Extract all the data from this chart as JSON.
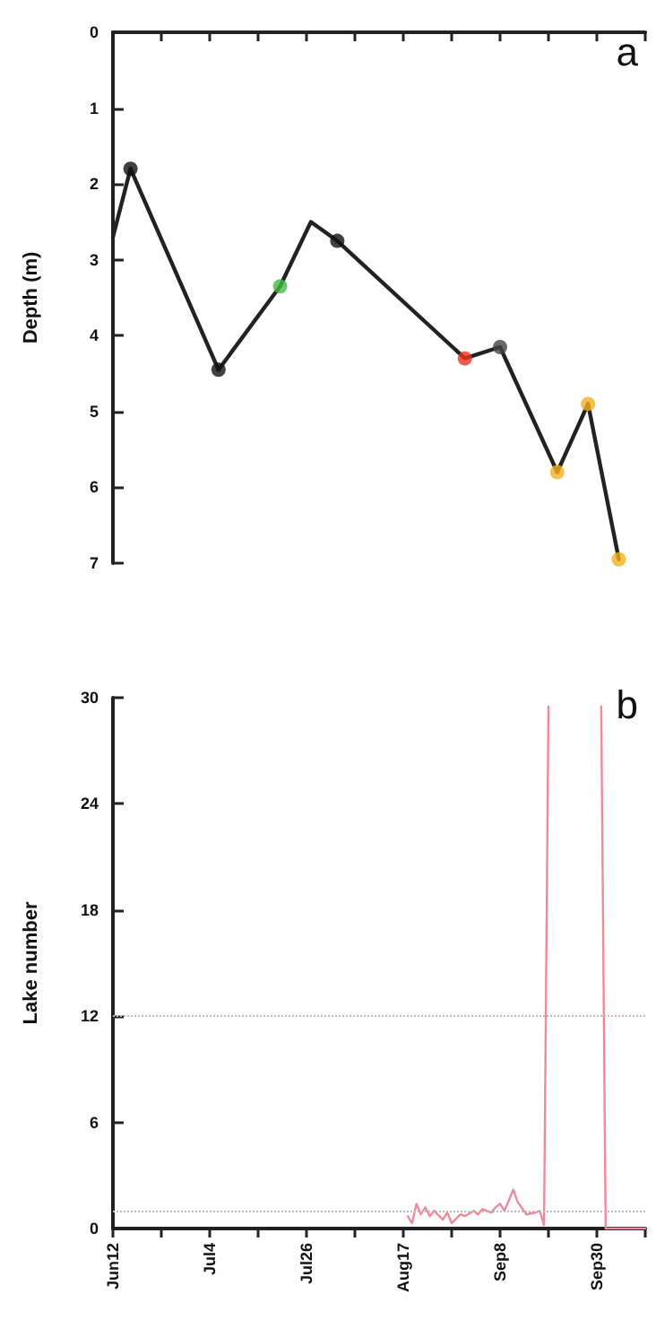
{
  "chart_data": [
    {
      "type": "line",
      "ylabel": "Depth (m)",
      "annotations": [
        "a"
      ],
      "ylim": [
        7,
        0
      ],
      "yticks": [
        0,
        1,
        2,
        3,
        4,
        5,
        6,
        7
      ],
      "xlim": [
        "--06-12",
        "--10-11"
      ],
      "xticks": [
        {
          "value": "--06-12",
          "label": "Jun12"
        },
        {
          "value": "--06-23",
          "label": null
        },
        {
          "value": "--07-04",
          "label": "Jul4"
        },
        {
          "value": "--07-15",
          "label": null
        },
        {
          "value": "--07-26",
          "label": "Jul26"
        },
        {
          "value": "--08-06",
          "label": null
        },
        {
          "value": "--08-17",
          "label": "Aug17"
        },
        {
          "value": "--08-28",
          "label": null
        },
        {
          "value": "--09-08",
          "label": "Sep8"
        },
        {
          "value": "--09-19",
          "label": null
        },
        {
          "value": "--09-30",
          "label": "Sep30"
        },
        {
          "value": "--10-11",
          "label": null
        }
      ],
      "tick_labels": "y",
      "grid": false,
      "series": [
        {
          "color": "#222222",
          "marker": "none",
          "line_style": "solid",
          "x": [
            "--06-12",
            "--06-16",
            "--07-06",
            "--07-20",
            "--07-27",
            "--08-02",
            "--08-31",
            "--09-08",
            "--09-21",
            "--09-28",
            "--10-05"
          ],
          "values": [
            2.7,
            1.8,
            4.45,
            3.35,
            2.5,
            2.75,
            4.3,
            4.15,
            5.8,
            4.9,
            6.95
          ]
        },
        {
          "type": "scatter",
          "marker": "circle",
          "x": [
            "--06-16",
            "--07-06",
            "--07-20",
            "--08-02",
            "--08-31",
            "--09-08",
            "--09-21",
            "--09-28",
            "--10-05"
          ],
          "values": [
            1.8,
            4.45,
            3.35,
            2.75,
            4.3,
            4.15,
            5.8,
            4.9,
            6.95
          ],
          "colors": [
            "#111111",
            "#111111",
            "#44bb44",
            "#111111",
            "#ee3322",
            "#444444",
            "#f5b021",
            "#f5b021",
            "#f5b021"
          ]
        }
      ]
    },
    {
      "type": "line",
      "ylabel": "Lake number",
      "annotations": [
        "b"
      ],
      "ylim": [
        0,
        30
      ],
      "yticks": [
        0,
        6,
        12,
        18,
        24,
        30
      ],
      "xlim": [
        "--06-12",
        "--10-11"
      ],
      "xticks": [
        {
          "value": "--06-12",
          "label": "Jun12"
        },
        {
          "value": "--06-23",
          "label": null
        },
        {
          "value": "--07-04",
          "label": "Jul4"
        },
        {
          "value": "--07-15",
          "label": null
        },
        {
          "value": "--07-26",
          "label": "Jul26"
        },
        {
          "value": "--08-06",
          "label": null
        },
        {
          "value": "--08-17",
          "label": "Aug17"
        },
        {
          "value": "--08-28",
          "label": null
        },
        {
          "value": "--09-08",
          "label": "Sep8"
        },
        {
          "value": "--09-19",
          "label": null
        },
        {
          "value": "--09-30",
          "label": "Sep30"
        },
        {
          "value": "--10-11",
          "label": null
        }
      ],
      "grid": false,
      "ref_lines": [
        {
          "axis": "y",
          "value": 12,
          "color": "#bbbbbb",
          "line_style": "dotted"
        },
        {
          "axis": "y",
          "value": 1,
          "color": "#bbbbbb",
          "line_style": "dotted"
        }
      ],
      "series": [
        {
          "color": "#f08a9a",
          "marker": "none",
          "line_style": "solid",
          "x": [
            "--08-18",
            "--08-19",
            "--08-20",
            "--08-21",
            "--08-22",
            "--08-23",
            "--08-24",
            "--08-26",
            "--08-27",
            "--08-28",
            "--08-30",
            "--08-31",
            "--09-02",
            "--09-03",
            "--09-04",
            "--09-06",
            "--09-07",
            "--09-08",
            "--09-09",
            "--09-11",
            "--09-12",
            "--09-14",
            "--09-16",
            "--09-17",
            "--09-18",
            "--09-19",
            "--09-20",
            "--10-01",
            "--10-02",
            "--10-11"
          ],
          "values": [
            0.7,
            0.3,
            1.4,
            0.8,
            1.2,
            0.7,
            1.0,
            0.5,
            0.9,
            0.3,
            0.8,
            0.7,
            1.0,
            0.8,
            1.1,
            0.9,
            1.2,
            1.4,
            1.0,
            2.2,
            1.5,
            0.8,
            0.9,
            1.0,
            0.2,
            29.5,
            null,
            29.5,
            0,
            0
          ]
        }
      ]
    }
  ]
}
